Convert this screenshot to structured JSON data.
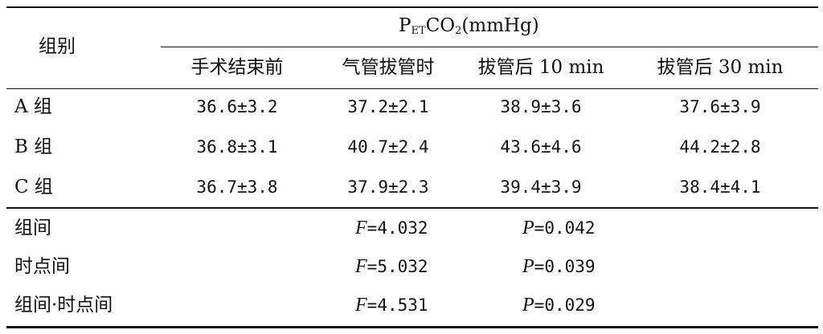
{
  "header": {
    "group_label": "组别",
    "petco2": {
      "main": "P",
      "sub": "ET",
      "main2": "CO",
      "sub2": "2",
      "unit": "(mmHg)"
    },
    "columns": [
      "手术结束前",
      "气管拔管时",
      "拔管后 10 min",
      "拔管后 30 min"
    ]
  },
  "rows": [
    {
      "group": "A 组",
      "values": [
        "36.6±3.2",
        "37.2±2.1",
        "38.9±3.6",
        "37.6±3.9"
      ]
    },
    {
      "group": "B 组",
      "values": [
        "36.8±3.1",
        "40.7±2.4",
        "43.6±4.6",
        "44.2±2.8"
      ]
    },
    {
      "group": "C 组",
      "values": [
        "36.7±3.8",
        "37.9±2.3",
        "39.4±3.9",
        "38.4±4.1"
      ]
    }
  ],
  "stats": [
    {
      "label": "组间",
      "f_sym": "F",
      "f_val": "=4.032",
      "p_sym": "P",
      "p_val": "=0.042"
    },
    {
      "label": "时点间",
      "f_sym": "F",
      "f_val": "=5.032",
      "p_sym": "P",
      "p_val": "=0.039"
    },
    {
      "label": "组间·时点间",
      "f_sym": "F",
      "f_val": "=4.531",
      "p_sym": "P",
      "p_val": "=0.029"
    }
  ]
}
